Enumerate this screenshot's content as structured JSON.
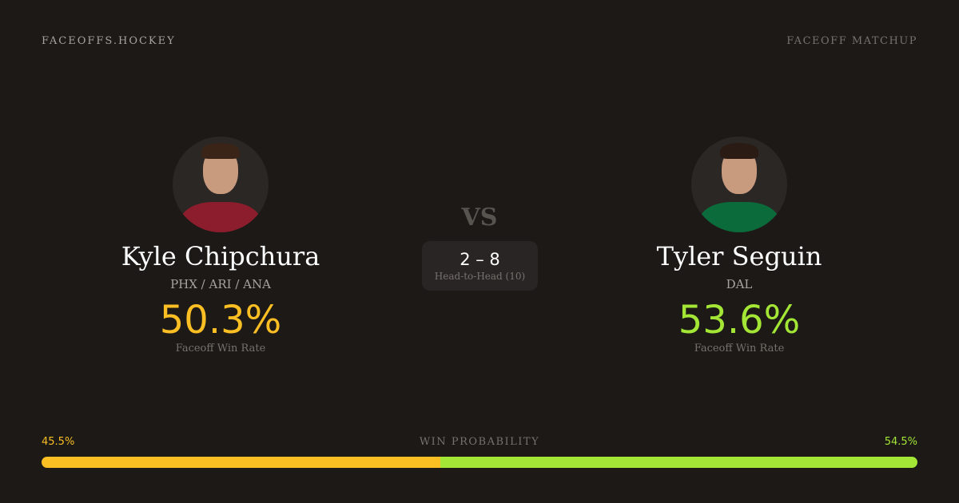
{
  "header": {
    "brand": "FACEOFFS.HOCKEY",
    "tag": "FACEOFF MATCHUP"
  },
  "players": [
    {
      "name": "Kyle Chipchura",
      "teams": "PHX / ARI / ANA",
      "win_rate": "50.3%",
      "win_rate_label": "Faceoff Win Rate",
      "color": "#fbbf24",
      "jersey": "#8c1d2c"
    },
    {
      "name": "Tyler Seguin",
      "teams": "DAL",
      "win_rate": "53.6%",
      "win_rate_label": "Faceoff Win Rate",
      "color": "#a3e635",
      "jersey": "#0b6b3a"
    }
  ],
  "vs": "VS",
  "head_to_head": {
    "score": "2 – 8",
    "label": "Head-to-Head (10)"
  },
  "win_probability": {
    "label": "WIN PROBABILITY",
    "left": "45.5%",
    "right": "54.5%",
    "left_value": 45.5,
    "right_value": 54.5
  }
}
